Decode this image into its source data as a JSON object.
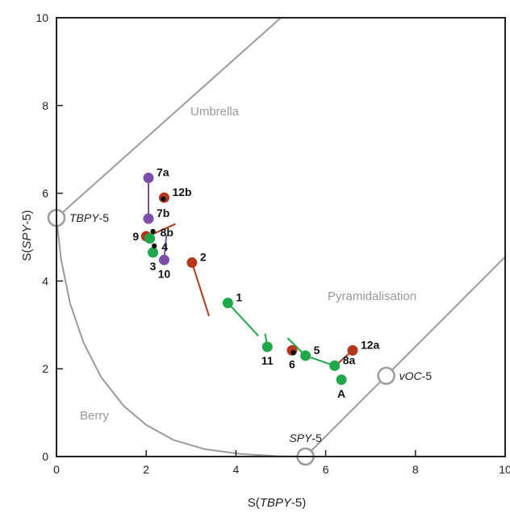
{
  "chart_data": {
    "type": "scatter",
    "xlabel": {
      "prefix": "S(",
      "italic": "TBPY",
      "suffix": "-5)"
    },
    "ylabel": {
      "prefix": "S(",
      "italic": "SPY",
      "suffix": "-5)"
    },
    "xlim": [
      0,
      10
    ],
    "ylim": [
      0,
      10
    ],
    "xticks": [
      0,
      2,
      4,
      6,
      8,
      10
    ],
    "yticks": [
      0,
      2,
      4,
      6,
      8,
      10
    ],
    "grid": false,
    "regions": [
      "Umbrella",
      "Pyramidalisation",
      "Berry"
    ],
    "reference_points": [
      {
        "italic": "TBPY",
        "suffix": "-5",
        "x": 0.0,
        "y": 5.44,
        "label_side": "right"
      },
      {
        "italic": "SPY",
        "suffix": "-5",
        "x": 5.55,
        "y": 0.0,
        "label_side": "top"
      },
      {
        "italic": "vOC",
        "suffix": "-5",
        "x": 7.35,
        "y": 1.84,
        "label_side": "right"
      }
    ],
    "guide_lines": {
      "umbrella": [
        [
          0,
          5.44
        ],
        [
          5.0,
          10.0
        ]
      ],
      "vOC": [
        [
          5.55,
          0.0
        ],
        [
          10.0,
          4.55
        ]
      ],
      "berry_curve": [
        [
          0,
          5.44
        ],
        [
          0.1,
          4.5
        ],
        [
          0.3,
          3.5
        ],
        [
          0.6,
          2.6
        ],
        [
          1.0,
          1.8
        ],
        [
          1.5,
          1.15
        ],
        [
          2.0,
          0.72
        ],
        [
          2.6,
          0.38
        ],
        [
          3.3,
          0.17
        ],
        [
          4.1,
          0.06
        ],
        [
          4.9,
          0.01
        ],
        [
          5.55,
          0.0
        ]
      ]
    },
    "colors": {
      "green": "#1fa84a",
      "purple": "#7b4fa8",
      "red": "#b5381e",
      "black": "#111111",
      "guide": "#9b9b9b"
    },
    "points": [
      {
        "label": "7a",
        "x": 2.05,
        "y": 6.35,
        "color": "purple",
        "label_dx": 1
      },
      {
        "label": "7b",
        "x": 2.05,
        "y": 5.42,
        "color": "purple",
        "label_dx": 1
      },
      {
        "label": "12b",
        "x": 2.4,
        "y": 5.9,
        "color": "red",
        "label_dx": 1
      },
      {
        "label": "9",
        "x": 2.0,
        "y": 5.02,
        "color": "red",
        "label_dx": -1
      },
      {
        "label": "",
        "x": 2.08,
        "y": 4.97,
        "color": "green",
        "label_dx": 0
      },
      {
        "label": "3",
        "x": 2.15,
        "y": 4.65,
        "color": "green",
        "label_dx": 0
      },
      {
        "label": "10",
        "x": 2.4,
        "y": 4.48,
        "color": "purple",
        "label_dx": 0
      },
      {
        "label": "2",
        "x": 3.02,
        "y": 4.42,
        "color": "red",
        "label_dx": 1
      },
      {
        "label": "1",
        "x": 3.82,
        "y": 3.5,
        "color": "green",
        "label_dx": 1
      },
      {
        "label": "11",
        "x": 4.7,
        "y": 2.5,
        "color": "green",
        "label_dx": 0
      },
      {
        "label": "6",
        "x": 5.25,
        "y": 2.42,
        "color": "red",
        "label_dx": 0
      },
      {
        "label": "5",
        "x": 5.55,
        "y": 2.3,
        "color": "green",
        "label_dx": 1
      },
      {
        "label": "12a",
        "x": 6.6,
        "y": 2.42,
        "color": "red",
        "label_dx": 1
      },
      {
        "label": "8a",
        "x": 6.2,
        "y": 2.07,
        "color": "green",
        "label_dx": 1
      },
      {
        "label": "A",
        "x": 6.35,
        "y": 1.75,
        "color": "green",
        "label_dx": 0
      }
    ],
    "black_points": [
      {
        "label": "",
        "x": 2.38,
        "y": 5.87
      },
      {
        "label": "8b",
        "x": 2.15,
        "y": 5.13
      },
      {
        "label": "4",
        "x": 2.18,
        "y": 4.8
      },
      {
        "label": "",
        "x": 5.28,
        "y": 2.37
      }
    ],
    "segments": [
      {
        "from": [
          2.05,
          6.35
        ],
        "to": [
          2.05,
          5.42
        ],
        "color": "purple"
      },
      {
        "from": [
          2.1,
          5.05
        ],
        "to": [
          2.65,
          5.3
        ],
        "color": "red"
      },
      {
        "from": [
          2.45,
          5.05
        ],
        "to": [
          2.4,
          4.48
        ],
        "color": "purple"
      },
      {
        "from": [
          3.02,
          4.42
        ],
        "to": [
          3.4,
          3.2
        ],
        "color": "red"
      },
      {
        "from": [
          3.82,
          3.5
        ],
        "to": [
          4.5,
          2.75
        ],
        "color": "green"
      },
      {
        "from": [
          4.65,
          2.8
        ],
        "to": [
          4.7,
          2.5
        ],
        "color": "green"
      },
      {
        "from": [
          5.15,
          2.7
        ],
        "to": [
          5.55,
          2.3
        ],
        "color": "green"
      },
      {
        "from": [
          5.6,
          2.28
        ],
        "to": [
          6.2,
          2.07
        ],
        "color": "green"
      },
      {
        "from": [
          6.25,
          2.1
        ],
        "to": [
          6.6,
          2.42
        ],
        "color": "red"
      }
    ]
  }
}
